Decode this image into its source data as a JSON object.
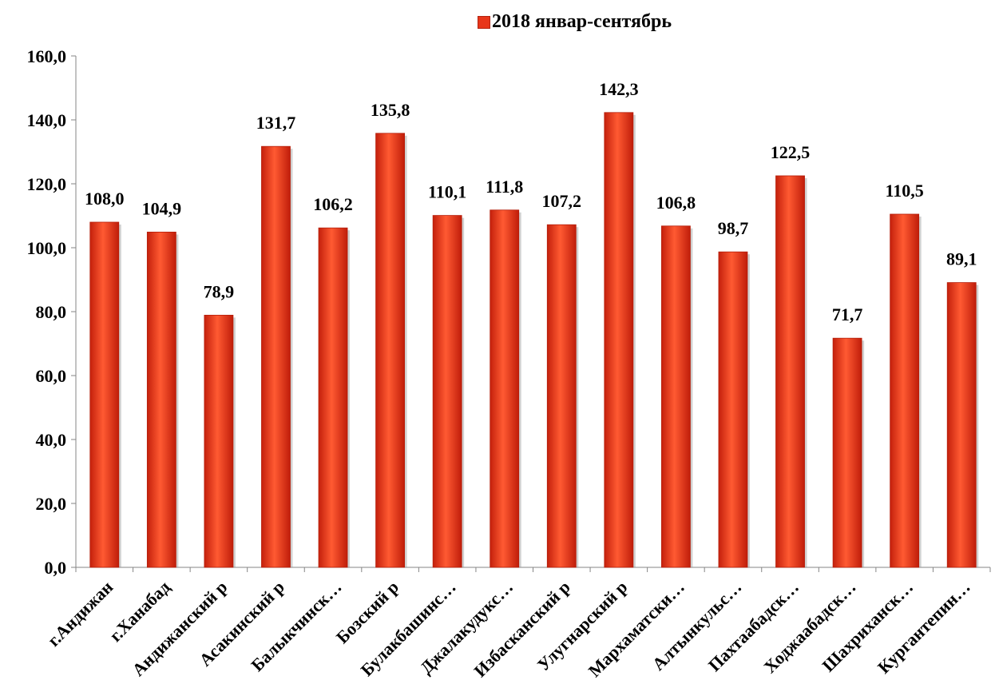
{
  "chart_data": {
    "type": "bar",
    "categories": [
      "г.Андижан",
      "г.Ханабад",
      "Андижанский р",
      "Асакинский р",
      "Балыкчинск…",
      "Бозский р",
      "Булакбашинс…",
      "Джалакудукс…",
      "Избасканский р",
      "Улугнарский р",
      "Мархаматски…",
      "Алтынкульс…",
      "Пахтаабадск…",
      "Ходжаабадск…",
      "Шахриханск…",
      "Кургантепин…"
    ],
    "series": [
      {
        "name": "2018 январ-сентябрь",
        "values": [
          108.0,
          104.9,
          78.9,
          131.7,
          106.2,
          135.8,
          110.1,
          111.8,
          107.2,
          142.3,
          106.8,
          98.7,
          122.5,
          71.7,
          110.5,
          89.1
        ],
        "value_labels": [
          "108,0",
          "104,9",
          "78,9",
          "131,7",
          "106,2",
          "135,8",
          "110,1",
          "111,8",
          "107,2",
          "142,3",
          "106,8",
          "98,7",
          "122,5",
          "71,7",
          "110,5",
          "89,1"
        ],
        "color": "#e8361a"
      }
    ],
    "y_ticks": [
      "0,0",
      "20,0",
      "40,0",
      "60,0",
      "80,0",
      "100,0",
      "120,0",
      "140,0",
      "160,0"
    ],
    "ylim": [
      0,
      160
    ],
    "grid": false,
    "legend_position": "top"
  }
}
